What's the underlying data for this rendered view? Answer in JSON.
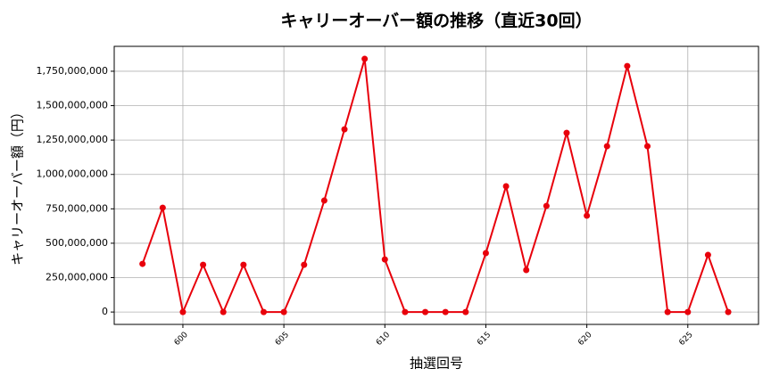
{
  "chart_data": {
    "type": "line",
    "title": "キャリーオーバー額の推移（直近30回）",
    "x_label": "抽選回号",
    "y_label": "キャリーオーバー額（円）",
    "x": [
      598,
      599,
      600,
      601,
      602,
      603,
      604,
      605,
      606,
      607,
      608,
      609,
      610,
      611,
      612,
      613,
      614,
      615,
      616,
      617,
      618,
      619,
      620,
      621,
      622,
      623,
      624,
      625,
      626,
      627
    ],
    "values": [
      350000000,
      758000000,
      0,
      343000000,
      0,
      343000000,
      0,
      0,
      343000000,
      810000000,
      1328000000,
      1840000000,
      382000000,
      0,
      0,
      0,
      0,
      428000000,
      914000000,
      305000000,
      771000000,
      1302000000,
      700000000,
      1205000000,
      1788000000,
      1205000000,
      0,
      0,
      415000000,
      0
    ],
    "color": "#e8000b",
    "xlim": [
      596.6,
      628.5
    ],
    "xticks": [
      600,
      605,
      610,
      615,
      620,
      625
    ],
    "ylim": [
      -90000000,
      1931000000
    ],
    "yticks": [
      0,
      {
        "value": 250000000,
        "label": "250,000,000"
      },
      {
        "value": 500000000,
        "label": "500,000,000"
      },
      {
        "value": 750000000,
        "label": "750,000,000"
      },
      {
        "value": 1000000000,
        "label": "1,000,000,000"
      },
      {
        "value": 1250000000,
        "label": "1,250,000,000"
      },
      {
        "value": 1500000000,
        "label": "1,500,000,000"
      },
      {
        "value": 1750000000,
        "label": "1,750,000,000"
      }
    ],
    "grid": true
  }
}
